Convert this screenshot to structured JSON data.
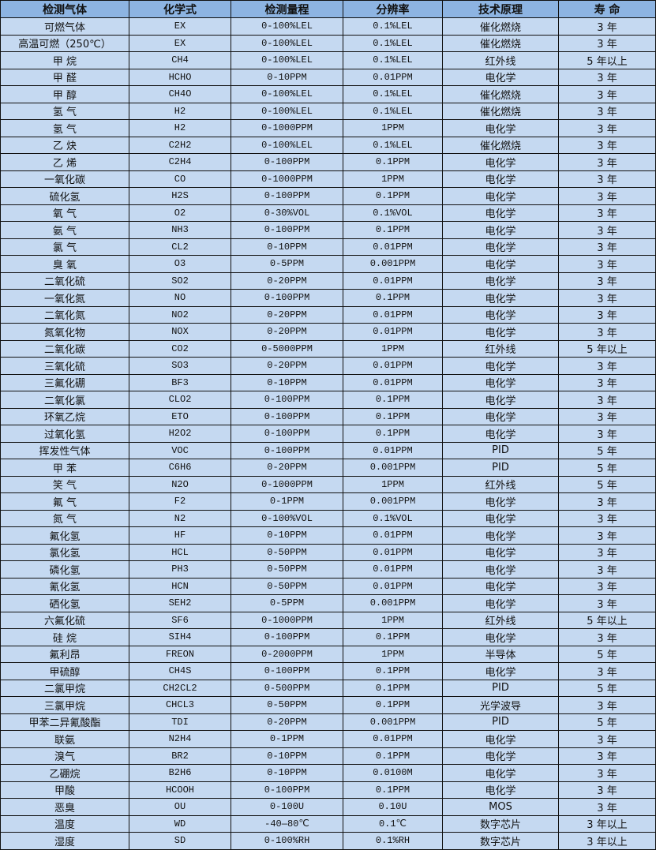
{
  "colors": {
    "header_bg": "#8db4e2",
    "row_bg": "#c5d9f1",
    "border": "#111111"
  },
  "headers": [
    "检测气体",
    "化学式",
    "检测量程",
    "分辨率",
    "技术原理",
    "寿  命"
  ],
  "rows": [
    [
      "可燃气体",
      "EX",
      "0-100%LEL",
      "0.1%LEL",
      "催化燃烧",
      "3 年"
    ],
    [
      "高温可燃（250℃）",
      "EX",
      "0-100%LEL",
      "0.1%LEL",
      "催化燃烧",
      "3 年"
    ],
    [
      "甲 烷",
      "CH4",
      "0-100%LEL",
      "0.1%LEL",
      "红外线",
      "5 年以上"
    ],
    [
      "甲 醛",
      "HCHO",
      "0-10PPM",
      "0.01PPM",
      "电化学",
      "3 年"
    ],
    [
      "甲 醇",
      "CH4O",
      "0-100%LEL",
      "0.1%LEL",
      "催化燃烧",
      "3 年"
    ],
    [
      "氢 气",
      "H2",
      "0-100%LEL",
      "0.1%LEL",
      "催化燃烧",
      "3 年"
    ],
    [
      "氢 气",
      "H2",
      "0-1000PPM",
      "1PPM",
      "电化学",
      "3 年"
    ],
    [
      "乙 炔",
      "C2H2",
      "0-100%LEL",
      "0.1%LEL",
      "催化燃烧",
      "3 年"
    ],
    [
      "乙 烯",
      "C2H4",
      "0-100PPM",
      "0.1PPM",
      "电化学",
      "3 年"
    ],
    [
      "一氧化碳",
      "CO",
      "0-1000PPM",
      "1PPM",
      "电化学",
      "3 年"
    ],
    [
      "硫化氢",
      "H2S",
      "0-100PPM",
      "0.1PPM",
      "电化学",
      "3 年"
    ],
    [
      "氧 气",
      "O2",
      "0-30%VOL",
      "0.1%VOL",
      "电化学",
      "3 年"
    ],
    [
      "氨 气",
      "NH3",
      "0-100PPM",
      "0.1PPM",
      "电化学",
      "3 年"
    ],
    [
      "氯 气",
      "CL2",
      "0-10PPM",
      "0.01PPM",
      "电化学",
      "3 年"
    ],
    [
      "臭 氧",
      "O3",
      "0-5PPM",
      "0.001PPM",
      "电化学",
      "3 年"
    ],
    [
      "二氧化硫",
      "SO2",
      "0-20PPM",
      "0.01PPM",
      "电化学",
      "3 年"
    ],
    [
      "一氧化氮",
      "NO",
      "0-100PPM",
      "0.1PPM",
      "电化学",
      "3 年"
    ],
    [
      "二氧化氮",
      "NO2",
      "0-20PPM",
      "0.01PPM",
      "电化学",
      "3 年"
    ],
    [
      "氮氧化物",
      "NOX",
      "0-20PPM",
      "0.01PPM",
      "电化学",
      "3 年"
    ],
    [
      "二氧化碳",
      "CO2",
      "0-5000PPM",
      "1PPM",
      "红外线",
      "5 年以上"
    ],
    [
      "三氧化硫",
      "SO3",
      "0-20PPM",
      "0.01PPM",
      "电化学",
      "3 年"
    ],
    [
      "三氟化硼",
      "BF3",
      "0-10PPM",
      "0.01PPM",
      "电化学",
      "3 年"
    ],
    [
      "二氧化氯",
      "CLO2",
      "0-100PPM",
      "0.1PPM",
      "电化学",
      "3 年"
    ],
    [
      "环氧乙烷",
      "ETO",
      "0-100PPM",
      "0.1PPM",
      "电化学",
      "3 年"
    ],
    [
      "过氧化氢",
      "H2O2",
      "0-100PPM",
      "0.1PPM",
      "电化学",
      "3 年"
    ],
    [
      "挥发性气体",
      "VOC",
      "0-100PPM",
      "0.01PPM",
      "PID",
      "5 年"
    ],
    [
      "甲 苯",
      "C6H6",
      "0-20PPM",
      "0.001PPM",
      "PID",
      "5 年"
    ],
    [
      "笑 气",
      "N2O",
      "0-1000PPM",
      "1PPM",
      "红外线",
      "5 年"
    ],
    [
      "氟 气",
      "F2",
      "0-1PPM",
      "0.001PPM",
      "电化学",
      "3 年"
    ],
    [
      "氮 气",
      "N2",
      "0-100%VOL",
      "0.1%VOL",
      "电化学",
      "3 年"
    ],
    [
      "氟化氢",
      "HF",
      "0-10PPM",
      "0.01PPM",
      "电化学",
      "3 年"
    ],
    [
      "氯化氢",
      "HCL",
      "0-50PPM",
      "0.01PPM",
      "电化学",
      "3 年"
    ],
    [
      "磷化氢",
      "PH3",
      "0-50PPM",
      "0.01PPM",
      "电化学",
      "3 年"
    ],
    [
      "氰化氢",
      "HCN",
      "0-50PPM",
      "0.01PPM",
      "电化学",
      "3 年"
    ],
    [
      "硒化氢",
      "SEH2",
      "0-5PPM",
      "0.001PPM",
      "电化学",
      "3 年"
    ],
    [
      "六氟化硫",
      "SF6",
      "0-1000PPM",
      "1PPM",
      "红外线",
      "5 年以上"
    ],
    [
      "硅 烷",
      "SIH4",
      "0-100PPM",
      "0.1PPM",
      "电化学",
      "3 年"
    ],
    [
      "氟利昂",
      "FREON",
      "0-2000PPM",
      "1PPM",
      "半导体",
      "5 年"
    ],
    [
      "甲硫醇",
      "CH4S",
      "0-100PPM",
      "0.1PPM",
      "电化学",
      "3 年"
    ],
    [
      "二氯甲烷",
      "CH2CL2",
      "0-500PPM",
      "0.1PPM",
      "PID",
      "5 年"
    ],
    [
      "三氯甲烷",
      "CHCL3",
      "0-50PPM",
      "0.1PPM",
      "光学波导",
      "3 年"
    ],
    [
      "甲苯二异氰酸酯",
      "TDI",
      "0-20PPM",
      "0.001PPM",
      "PID",
      "5 年"
    ],
    [
      "联氨",
      "N2H4",
      "0-1PPM",
      "0.01PPM",
      "电化学",
      "3 年"
    ],
    [
      "溴气",
      "BR2",
      "0-10PPM",
      "0.1PPM",
      "电化学",
      "3 年"
    ],
    [
      "乙硼烷",
      "B2H6",
      "0-10PPM",
      "0.0100M",
      "电化学",
      "3 年"
    ],
    [
      "甲酸",
      "HCOOH",
      "0-100PPM",
      "0.1PPM",
      "电化学",
      "3 年"
    ],
    [
      "恶臭",
      "OU",
      "0-100U",
      "0.10U",
      "MOS",
      "3 年"
    ],
    [
      "温度",
      "WD",
      "-40—80℃",
      "0.1℃",
      "数字芯片",
      "3 年以上"
    ],
    [
      "湿度",
      "SD",
      "0-100%RH",
      "0.1%RH",
      "数字芯片",
      "3 年以上"
    ]
  ]
}
